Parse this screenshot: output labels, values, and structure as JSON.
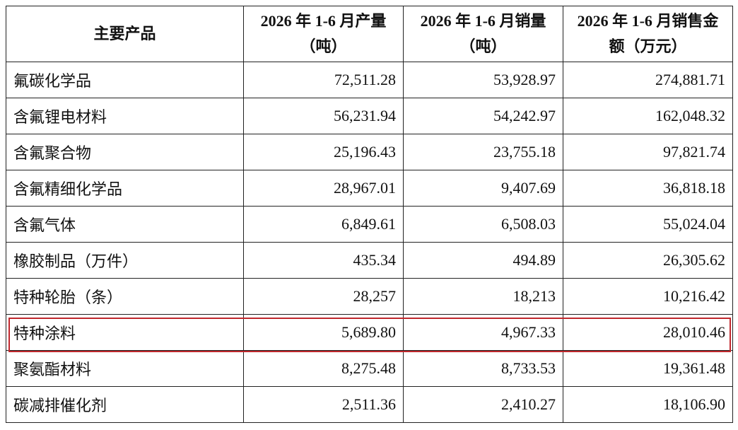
{
  "table": {
    "header": [
      "主要产品",
      "2026 年 1-6 月产量（吨）",
      "2026 年 1-6 月销量（吨）",
      "2026 年 1-6 月销售金额（万元）"
    ],
    "rows": [
      [
        "氟碳化学品",
        "72,511.28",
        "53,928.97",
        "274,881.71"
      ],
      [
        "含氟锂电材料",
        "56,231.94",
        "54,242.97",
        "162,048.32"
      ],
      [
        "含氟聚合物",
        "25,196.43",
        "23,755.18",
        "97,821.74"
      ],
      [
        "含氟精细化学品",
        "28,967.01",
        "9,407.69",
        "36,818.18"
      ],
      [
        "含氟气体",
        "6,849.61",
        "6,508.03",
        "55,024.04"
      ],
      [
        "橡胶制品（万件）",
        "435.34",
        "494.89",
        "26,305.62"
      ],
      [
        "特种轮胎（条）",
        "28,257",
        "18,213",
        "10,216.42"
      ],
      [
        "特种涂料",
        "5,689.80",
        "4,967.33",
        "28,010.46"
      ],
      [
        "聚氨酯材料",
        "8,275.48",
        "8,733.53",
        "19,361.48"
      ],
      [
        "碳减排催化剂",
        "2,511.36",
        "2,410.27",
        "18,106.90"
      ]
    ]
  }
}
